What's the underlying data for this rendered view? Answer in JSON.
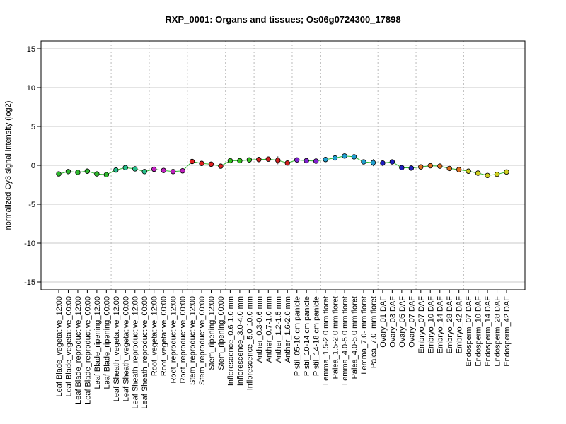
{
  "chart_data": {
    "type": "line",
    "title": "RXP_0001: Organs and tissues; Os06g0724300_17898",
    "xlabel": "",
    "ylabel": "normalized Cy3 signal intensity (log2)",
    "ylim": [
      -16,
      16
    ],
    "yticks": [
      -15,
      -10,
      -5,
      0,
      5,
      10,
      15
    ],
    "grid": true,
    "categories": [
      "Leaf Blade_vegetative_12:00",
      "Leaf Blade_vegetative_00:00",
      "Leaf Blade_reproductive_12:00",
      "Leaf Blade_reproductive_00:00",
      "Leaf Blade_ripening_12:00",
      "Leaf Blade_ripening_00:00",
      "Leaf Sheath_vegetative_12:00",
      "Leaf Sheath_vegetative_00:00",
      "Leaf Sheath_reproductive_12:00",
      "Leaf Sheath_reproductive_00:00",
      "Root_vegetative_12:00",
      "Root_vegetative_00:00",
      "Root_reproductive_12:00",
      "Root_reproductive_00:00",
      "Stem_reproductive_12:00",
      "Stem_reproductive_00:00",
      "Stem_ripening_12:00",
      "Stem_ripening_00:00",
      "Inflorescence_0.6-1.0 mm",
      "Inflorescence_3.0-4.0 mm",
      "Inflorescence_5.0-10.0 mm",
      "Anther_0.3-0.6 mm",
      "Anther_0.7-1.0 mm",
      "Anther_1.2-1.5 mm",
      "Anther_1.6-2.0 mm",
      "Pistil_05-10 cm panicle",
      "Pistil_10-14 cm panicle",
      "Pistil_14-18 cm panicle",
      "Lemma_1.5-2.0 mm floret",
      "Palea_1.5-2.0 mm floret",
      "Lemma_4.0-5.0 mm floret",
      "Palea_4.0-5.0 mm floret",
      "Lemma_7.0- mm floret",
      "Palea_7.0- mm floret",
      "Ovary_01 DAF",
      "Ovary_03 DAF",
      "Ovary_05 DAF",
      "Ovary_07 DAF",
      "Embryo_07 DAF",
      "Embryo_10 DAF",
      "Embryo_14 DAF",
      "Embryo_28 DAF",
      "Embryo_42 DAF",
      "Endosperm_07 DAF",
      "Endosperm_10 DAF",
      "Endosperm_14 DAF",
      "Endosperm_28 DAF",
      "Endosperm_42 DAF"
    ],
    "values": [
      -1.1,
      -0.8,
      -0.9,
      -0.75,
      -1.1,
      -1.2,
      -0.6,
      -0.3,
      -0.45,
      -0.8,
      -0.5,
      -0.65,
      -0.8,
      -0.7,
      0.5,
      0.25,
      0.15,
      -0.1,
      0.6,
      0.6,
      0.7,
      0.75,
      0.8,
      0.65,
      0.3,
      0.7,
      0.6,
      0.55,
      0.75,
      0.95,
      1.2,
      1.1,
      0.45,
      0.35,
      0.3,
      0.45,
      -0.3,
      -0.35,
      -0.2,
      -0.05,
      -0.1,
      -0.4,
      -0.55,
      -0.75,
      -1.0,
      -1.3,
      -1.15,
      -0.85
    ],
    "errors": [
      0.15,
      0.1,
      0.1,
      0.1,
      0.1,
      0.15,
      0.1,
      0.1,
      0.1,
      0.3,
      0.1,
      0.1,
      0.1,
      0.35,
      0.1,
      0.15,
      0.1,
      0.2,
      0.1,
      0.1,
      0.1,
      0.15,
      0.15,
      0.5,
      0.2,
      0.1,
      0.1,
      0.1,
      0.1,
      0.15,
      0.2,
      0.35,
      0.25,
      0.45,
      0.4,
      0.1,
      0.1,
      0.2,
      0.1,
      0.1,
      0.1,
      0.1,
      0.1,
      0.1,
      0.1,
      0.1,
      0.15,
      0.1
    ],
    "point_colors": [
      "#2eb82e",
      "#2eb82e",
      "#2eb82e",
      "#2eb82e",
      "#2eb82e",
      "#2eb82e",
      "#26c08c",
      "#26c08c",
      "#26c08c",
      "#26c08c",
      "#c020c0",
      "#c020c0",
      "#c020c0",
      "#c020c0",
      "#e02020",
      "#e02020",
      "#e02020",
      "#e02020",
      "#33c020",
      "#33c020",
      "#33c020",
      "#d02020",
      "#d02020",
      "#d02020",
      "#d02020",
      "#8020d0",
      "#8020d0",
      "#8020d0",
      "#20a0d0",
      "#20a0d0",
      "#20a0d0",
      "#20a0d0",
      "#20a0d0",
      "#20a0d0",
      "#1f1fc0",
      "#1f1fc0",
      "#1f1fc0",
      "#1f1fc0",
      "#e07020",
      "#e07020",
      "#e07020",
      "#e07020",
      "#e07020",
      "#d0d020",
      "#d0d020",
      "#d0d020",
      "#d0d020",
      "#d0d020"
    ],
    "group_separators_after": [
      5,
      9,
      13,
      17,
      20,
      24,
      27,
      33,
      37,
      42
    ],
    "line_color": "#2eb82e"
  }
}
